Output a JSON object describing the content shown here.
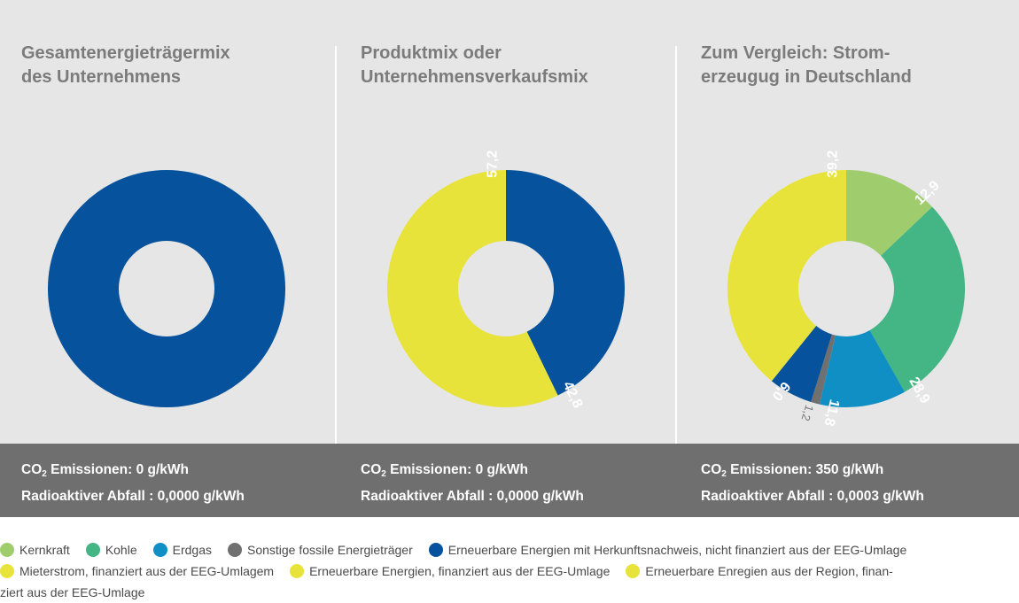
{
  "colors": {
    "kernkraft": "#9fcd6d",
    "kohle": "#44b584",
    "erdgas": "#0f8fc4",
    "fossil": "#707070",
    "ee_hkn": "#06529c",
    "mieter": "#e8e33a",
    "ee_eeg": "#e8e33a",
    "region": "#e8e33a"
  },
  "chart_data": [
    {
      "type": "pie",
      "title_line1": "Gesamtenergieträgermix",
      "title_line2": "des Unternehmens",
      "slices": [
        {
          "key": "ee_hkn",
          "value": 100,
          "label": ""
        }
      ],
      "co2_label": "Emissionen: 0 g/kWh",
      "waste_label": "Radioaktiver Abfall : 0,0000 g/kWh"
    },
    {
      "type": "pie",
      "title_line1": "Produktmix oder",
      "title_line2": "Unternehmensverkaufsmix",
      "slices": [
        {
          "key": "ee_hkn",
          "value": 42.8,
          "label": "42,8"
        },
        {
          "key": "ee_eeg",
          "value": 57.2,
          "label": "57,2"
        }
      ],
      "co2_label": "Emissionen: 0 g/kWh",
      "waste_label": "Radioaktiver Abfall : 0,0000 g/kWh"
    },
    {
      "type": "pie",
      "title_line1": "Zum Vergleich: Strom-",
      "title_line2": "erzeugug in Deutschland",
      "slices": [
        {
          "key": "kernkraft",
          "value": 12.9,
          "label": "12,9"
        },
        {
          "key": "kohle",
          "value": 28.9,
          "label": "28,9"
        },
        {
          "key": "erdgas",
          "value": 11.8,
          "label": "11,8"
        },
        {
          "key": "fossil",
          "value": 1.2,
          "label": "1,2",
          "outside": true
        },
        {
          "key": "ee_hkn",
          "value": 6.0,
          "label": "6,0"
        },
        {
          "key": "ee_eeg",
          "value": 39.2,
          "label": "39,2"
        }
      ],
      "co2_label": "Emissionen: 350 g/kWh",
      "waste_label": "Radioaktiver Abfall : 0,0003 g/kWh"
    }
  ],
  "co2_prefix": "CO",
  "co2_sub": "2",
  "legend": {
    "row1": [
      {
        "key": "kernkraft",
        "label": "Kernkraft"
      },
      {
        "key": "kohle",
        "label": "Kohle"
      },
      {
        "key": "erdgas",
        "label": "Erdgas"
      },
      {
        "key": "fossil",
        "label": "Sonstige fossile Energieträger"
      },
      {
        "key": "ee_hkn",
        "label": "Erneuerbare Energien mit Herkunftsnachweis, nicht finanziert aus der EEG-Umlage"
      }
    ],
    "row2": [
      {
        "key": "mieter",
        "label": "Mieterstrom, finanziert aus der EEG-Umlagem"
      },
      {
        "key": "ee_eeg",
        "label": "Erneuerbare Energien, finanziert aus der EEG-Umlage"
      },
      {
        "key": "region",
        "label": "Erneuerbare Enregien aus der Region, finan-"
      }
    ],
    "row3": "ziert aus der EEG-Umlage"
  }
}
